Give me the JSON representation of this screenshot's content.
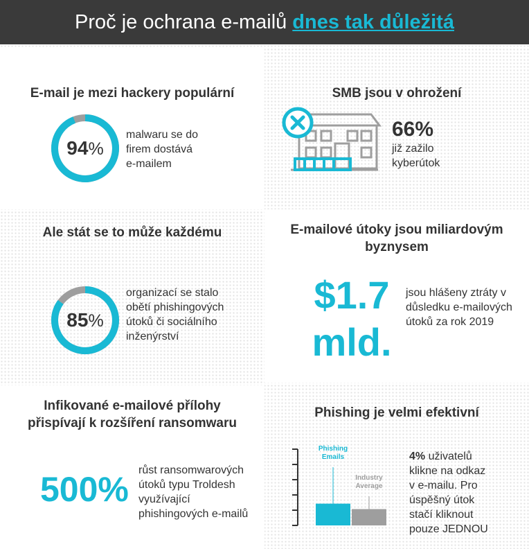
{
  "header": {
    "title": "Proč je ochrana e-mailů",
    "highlight": "dnes tak důležitá"
  },
  "colors": {
    "teal": "#19b9d4",
    "gray": "#9e9e9e",
    "dark": "#333333",
    "header_bg": "#3a3a3a"
  },
  "section1": {
    "heading": "E-mail je mezi hackery populární",
    "value": "94",
    "unit": "%",
    "fraction": 0.94,
    "lines": [
      "malwaru se do",
      "firem dostává",
      "e-mailem"
    ]
  },
  "section2": {
    "heading": "SMB jsou v ohrožení",
    "value": "66%",
    "lines": [
      "již zažilo",
      "kyberútok"
    ],
    "icon": "building-x-icon"
  },
  "section3": {
    "heading": "Ale stát se to může každému",
    "value": "85",
    "unit": "%",
    "fraction": 0.85,
    "lines": [
      "organizací se stalo",
      "obětí phishingových",
      "útoků či sociálního",
      "inženýrství"
    ]
  },
  "section4": {
    "heading_lines": [
      "E-mailové útoky jsou miliardovým",
      "byznysem"
    ],
    "value_line1": "$1.7",
    "value_line2": "mld.",
    "lines": [
      "jsou hlášeny ztráty v",
      "důsledku e-mailových",
      "útoků za rok 2019"
    ]
  },
  "section5": {
    "heading_lines": [
      "Infikované e-mailové přílohy",
      "přispívají k rozšíření ransomwaru"
    ],
    "value": "500%",
    "lines": [
      "růst ransomwarových",
      "útoků typu Troldesh",
      "využívající",
      "phishingových e-mailů"
    ]
  },
  "section6": {
    "heading": "Phishing je velmi efektivní",
    "lines_first_bold": "4%",
    "lines_first_rest": " uživatelů",
    "lines": [
      "klikne na odkaz",
      "v e-mailu. Pro",
      "úspěšný útok",
      "stačí kliknout",
      "pouze JEDNOU"
    ]
  },
  "chart_data": {
    "type": "bar",
    "categories": [
      "Phishing Emails",
      "Industry Average"
    ],
    "series": [
      {
        "values": [
          4,
          3
        ]
      }
    ],
    "label_lines": [
      [
        "Phishing",
        "Emails"
      ],
      [
        "Industry",
        "Average"
      ]
    ],
    "bar_colors": [
      "#19b9d4",
      "#9e9e9e"
    ],
    "ylim": [
      0,
      14
    ],
    "ticks": 6,
    "title": "",
    "xlabel": "",
    "ylabel": ""
  }
}
